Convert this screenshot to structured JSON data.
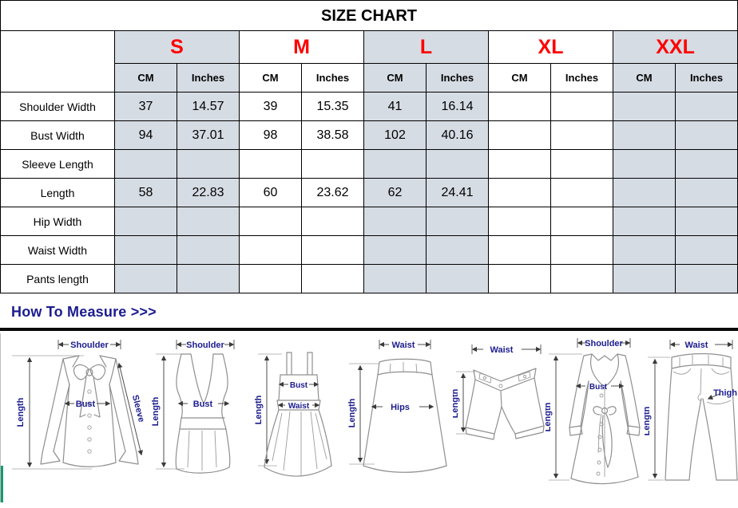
{
  "title": "SIZE CHART",
  "colors": {
    "accent_red": "#fe0101",
    "header_fill": "#d6dce4",
    "navy": "#1c1c8f",
    "green_strip": "#17996b"
  },
  "table": {
    "sizes": [
      "S",
      "M",
      "L",
      "XL",
      "XXL"
    ],
    "units": [
      "CM",
      "Inches"
    ],
    "rows": [
      {
        "label": "Shoulder Width",
        "values": [
          "37",
          "14.57",
          "39",
          "15.35",
          "41",
          "16.14",
          "",
          "",
          "",
          ""
        ]
      },
      {
        "label": "Bust Width",
        "values": [
          "94",
          "37.01",
          "98",
          "38.58",
          "102",
          "40.16",
          "",
          "",
          "",
          ""
        ]
      },
      {
        "label": "Sleeve Length",
        "values": [
          "",
          "",
          "",
          "",
          "",
          "",
          "",
          "",
          "",
          ""
        ]
      },
      {
        "label": "Length",
        "values": [
          "58",
          "22.83",
          "60",
          "23.62",
          "62",
          "24.41",
          "",
          "",
          "",
          ""
        ]
      },
      {
        "label": "Hip Width",
        "values": [
          "",
          "",
          "",
          "",
          "",
          "",
          "",
          "",
          "",
          ""
        ]
      },
      {
        "label": "Waist Width",
        "values": [
          "",
          "",
          "",
          "",
          "",
          "",
          "",
          "",
          "",
          ""
        ]
      },
      {
        "label": "Pants length",
        "values": [
          "",
          "",
          "",
          "",
          "",
          "",
          "",
          "",
          "",
          ""
        ]
      }
    ]
  },
  "measure": {
    "heading": "How To Measure >>>",
    "figures": [
      {
        "name": "blouse",
        "labels": {
          "shoulder": "Shoulder",
          "length": "Length",
          "bust": "Bust",
          "sleeve": "Sleeve"
        }
      },
      {
        "name": "tank-top",
        "labels": {
          "shoulder": "Shoulder",
          "length": "Length",
          "bust": "Bust"
        }
      },
      {
        "name": "dress",
        "labels": {
          "length": "Length",
          "bust": "Bust",
          "waist": "Waist"
        }
      },
      {
        "name": "skirt",
        "labels": {
          "waist": "Waist",
          "length": "Length",
          "hips": "Hips"
        }
      },
      {
        "name": "shorts",
        "labels": {
          "waist": "Waist",
          "length": "Length"
        }
      },
      {
        "name": "coat",
        "labels": {
          "shoulder": "Shoulder",
          "length": "Length",
          "bust": "Bust"
        }
      },
      {
        "name": "pants",
        "labels": {
          "waist": "Waist",
          "length": "Length",
          "thigh": "Thigh"
        }
      }
    ]
  }
}
